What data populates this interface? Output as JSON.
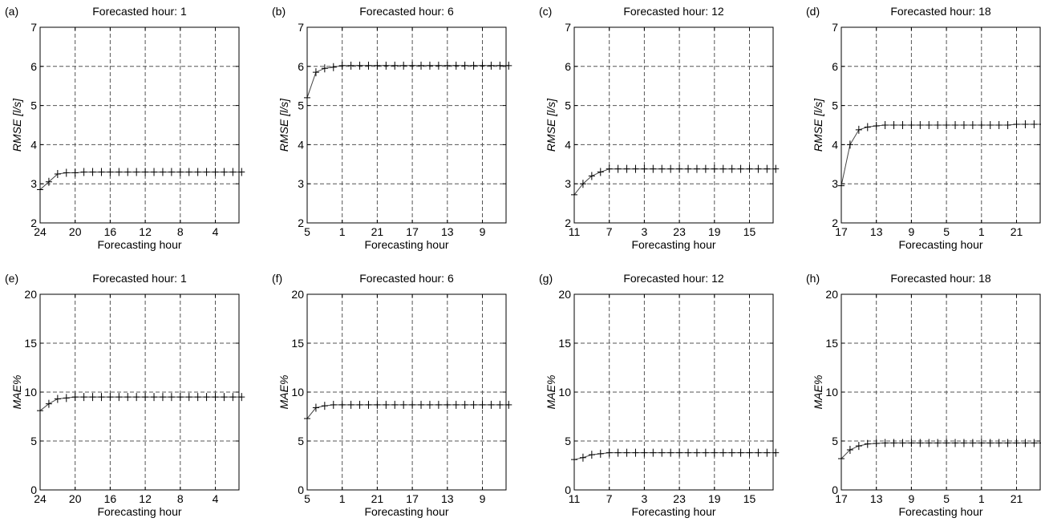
{
  "chart_data": [
    {
      "panel": "(a)",
      "type": "line",
      "title": "Forecasted hour: 1",
      "xlabel": "Forecasting hour",
      "ylabel": "RMSE [l/s]",
      "ylim": [
        2,
        7
      ],
      "yticks": [
        "2",
        "3",
        "4",
        "5",
        "6",
        "7"
      ],
      "xticks": [
        "24",
        "20",
        "16",
        "12",
        "8",
        "4"
      ],
      "grid": true,
      "series": [
        {
          "values": [
            2.85,
            3.05,
            3.25,
            3.28,
            3.28,
            3.3,
            3.3,
            3.3,
            3.3,
            3.3,
            3.3,
            3.3,
            3.3,
            3.3,
            3.3,
            3.3,
            3.3,
            3.3,
            3.3,
            3.3,
            3.3,
            3.3,
            3.3,
            3.3
          ]
        }
      ]
    },
    {
      "panel": "(b)",
      "type": "line",
      "title": "Forecasted hour: 6",
      "xlabel": "Forecasting hour",
      "ylabel": "RMSE [l/s]",
      "ylim": [
        2,
        7
      ],
      "yticks": [
        "2",
        "3",
        "4",
        "5",
        "6",
        "7"
      ],
      "xticks": [
        "5",
        "1",
        "21",
        "17",
        "13",
        "9"
      ],
      "grid": true,
      "series": [
        {
          "values": [
            5.2,
            5.85,
            5.95,
            5.98,
            6.02,
            6.02,
            6.02,
            6.02,
            6.02,
            6.02,
            6.02,
            6.02,
            6.02,
            6.02,
            6.02,
            6.02,
            6.02,
            6.02,
            6.02,
            6.02,
            6.02,
            6.02,
            6.02,
            6.02
          ]
        }
      ]
    },
    {
      "panel": "(c)",
      "type": "line",
      "title": "Forecasted hour: 12",
      "xlabel": "Forecasting hour",
      "ylabel": "RMSE [l/s]",
      "ylim": [
        2,
        7
      ],
      "yticks": [
        "2",
        "3",
        "4",
        "5",
        "6",
        "7"
      ],
      "xticks": [
        "11",
        "7",
        "3",
        "23",
        "19",
        "15"
      ],
      "grid": true,
      "series": [
        {
          "values": [
            2.72,
            3.0,
            3.2,
            3.3,
            3.38,
            3.38,
            3.38,
            3.38,
            3.38,
            3.38,
            3.38,
            3.38,
            3.38,
            3.38,
            3.38,
            3.38,
            3.38,
            3.38,
            3.38,
            3.38,
            3.38,
            3.38,
            3.38,
            3.38
          ]
        }
      ]
    },
    {
      "panel": "(d)",
      "type": "line",
      "title": "Forecasted hour: 18",
      "xlabel": "Forecasting hour",
      "ylabel": "RMSE [l/s]",
      "ylim": [
        2,
        7
      ],
      "yticks": [
        "2",
        "3",
        "4",
        "5",
        "6",
        "7"
      ],
      "xticks": [
        "17",
        "13",
        "9",
        "5",
        "1",
        "21"
      ],
      "grid": true,
      "series": [
        {
          "values": [
            2.95,
            4.0,
            4.38,
            4.45,
            4.48,
            4.5,
            4.5,
            4.5,
            4.5,
            4.5,
            4.5,
            4.5,
            4.5,
            4.5,
            4.5,
            4.5,
            4.5,
            4.5,
            4.5,
            4.5,
            4.52,
            4.52,
            4.52,
            4.52
          ]
        }
      ]
    },
    {
      "panel": "(e)",
      "type": "line",
      "title": "Forecasted hour: 1",
      "xlabel": "Forecasting hour",
      "ylabel": "MAE%",
      "ylim": [
        0,
        20
      ],
      "yticks": [
        "0",
        "5",
        "10",
        "15",
        "20"
      ],
      "xticks": [
        "24",
        "20",
        "16",
        "12",
        "8",
        "4"
      ],
      "grid": true,
      "series": [
        {
          "values": [
            8.1,
            8.8,
            9.3,
            9.4,
            9.5,
            9.5,
            9.5,
            9.5,
            9.5,
            9.5,
            9.5,
            9.5,
            9.5,
            9.5,
            9.5,
            9.5,
            9.5,
            9.5,
            9.5,
            9.5,
            9.5,
            9.5,
            9.5,
            9.5
          ]
        }
      ]
    },
    {
      "panel": "(f)",
      "type": "line",
      "title": "Forecasted hour: 6",
      "xlabel": "Forecasting hour",
      "ylabel": "MAE%",
      "ylim": [
        0,
        20
      ],
      "yticks": [
        "0",
        "5",
        "10",
        "15",
        "20"
      ],
      "xticks": [
        "5",
        "1",
        "21",
        "17",
        "13",
        "9"
      ],
      "grid": true,
      "series": [
        {
          "values": [
            7.3,
            8.4,
            8.6,
            8.7,
            8.7,
            8.7,
            8.7,
            8.7,
            8.7,
            8.7,
            8.7,
            8.7,
            8.7,
            8.7,
            8.7,
            8.7,
            8.7,
            8.7,
            8.7,
            8.7,
            8.7,
            8.7,
            8.7,
            8.7
          ]
        }
      ]
    },
    {
      "panel": "(g)",
      "type": "line",
      "title": "Forecasted hour: 12",
      "xlabel": "Forecasting hour",
      "ylabel": "MAE%",
      "ylim": [
        0,
        20
      ],
      "yticks": [
        "0",
        "5",
        "10",
        "15",
        "20"
      ],
      "xticks": [
        "11",
        "7",
        "3",
        "23",
        "19",
        "15"
      ],
      "grid": true,
      "series": [
        {
          "values": [
            3.1,
            3.3,
            3.6,
            3.7,
            3.8,
            3.8,
            3.8,
            3.8,
            3.8,
            3.8,
            3.8,
            3.8,
            3.8,
            3.8,
            3.8,
            3.8,
            3.8,
            3.8,
            3.8,
            3.8,
            3.8,
            3.8,
            3.8,
            3.8
          ]
        }
      ]
    },
    {
      "panel": "(h)",
      "type": "line",
      "title": "Forecasted hour: 18",
      "xlabel": "Forecasting hour",
      "ylabel": "MAE%",
      "ylim": [
        0,
        20
      ],
      "yticks": [
        "0",
        "5",
        "10",
        "15",
        "20"
      ],
      "xticks": [
        "17",
        "13",
        "9",
        "5",
        "1",
        "21"
      ],
      "grid": true,
      "series": [
        {
          "values": [
            3.2,
            4.1,
            4.5,
            4.7,
            4.75,
            4.8,
            4.8,
            4.8,
            4.8,
            4.8,
            4.8,
            4.8,
            4.8,
            4.8,
            4.8,
            4.8,
            4.8,
            4.8,
            4.8,
            4.8,
            4.8,
            4.8,
            4.8,
            4.8
          ]
        }
      ]
    }
  ]
}
